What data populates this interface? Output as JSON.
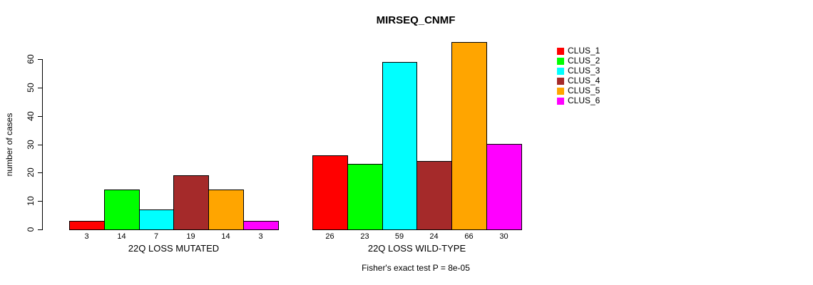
{
  "chart_data": {
    "type": "bar",
    "title": "MIRSEQ_CNMF",
    "ylabel": "number of cases",
    "xlabel": "",
    "ylim": [
      0,
      60
    ],
    "yticks": [
      0,
      10,
      20,
      30,
      40,
      50,
      60
    ],
    "grid": false,
    "legend_position": "right",
    "categories": [
      "22Q LOSS MUTATED",
      "22Q LOSS WILD-TYPE"
    ],
    "groups": [
      {
        "label": "22Q LOSS MUTATED",
        "values": [
          3,
          14,
          7,
          19,
          14,
          3
        ]
      },
      {
        "label": "22Q LOSS WILD-TYPE",
        "values": [
          26,
          23,
          59,
          24,
          66,
          30
        ]
      }
    ],
    "series": [
      {
        "name": "CLUS_1",
        "color": "#FF0000"
      },
      {
        "name": "CLUS_2",
        "color": "#00FF00"
      },
      {
        "name": "CLUS_3",
        "color": "#00FFFF"
      },
      {
        "name": "CLUS_4",
        "color": "#A52A2A"
      },
      {
        "name": "CLUS_5",
        "color": "#FFA500"
      },
      {
        "name": "CLUS_6",
        "color": "#FF00FF"
      }
    ],
    "bar_value_labels_shown": true,
    "annotation": "Fisher's exact test P = 8e-05",
    "axis_color": "#000000",
    "background_color": "#FFFFFF"
  }
}
